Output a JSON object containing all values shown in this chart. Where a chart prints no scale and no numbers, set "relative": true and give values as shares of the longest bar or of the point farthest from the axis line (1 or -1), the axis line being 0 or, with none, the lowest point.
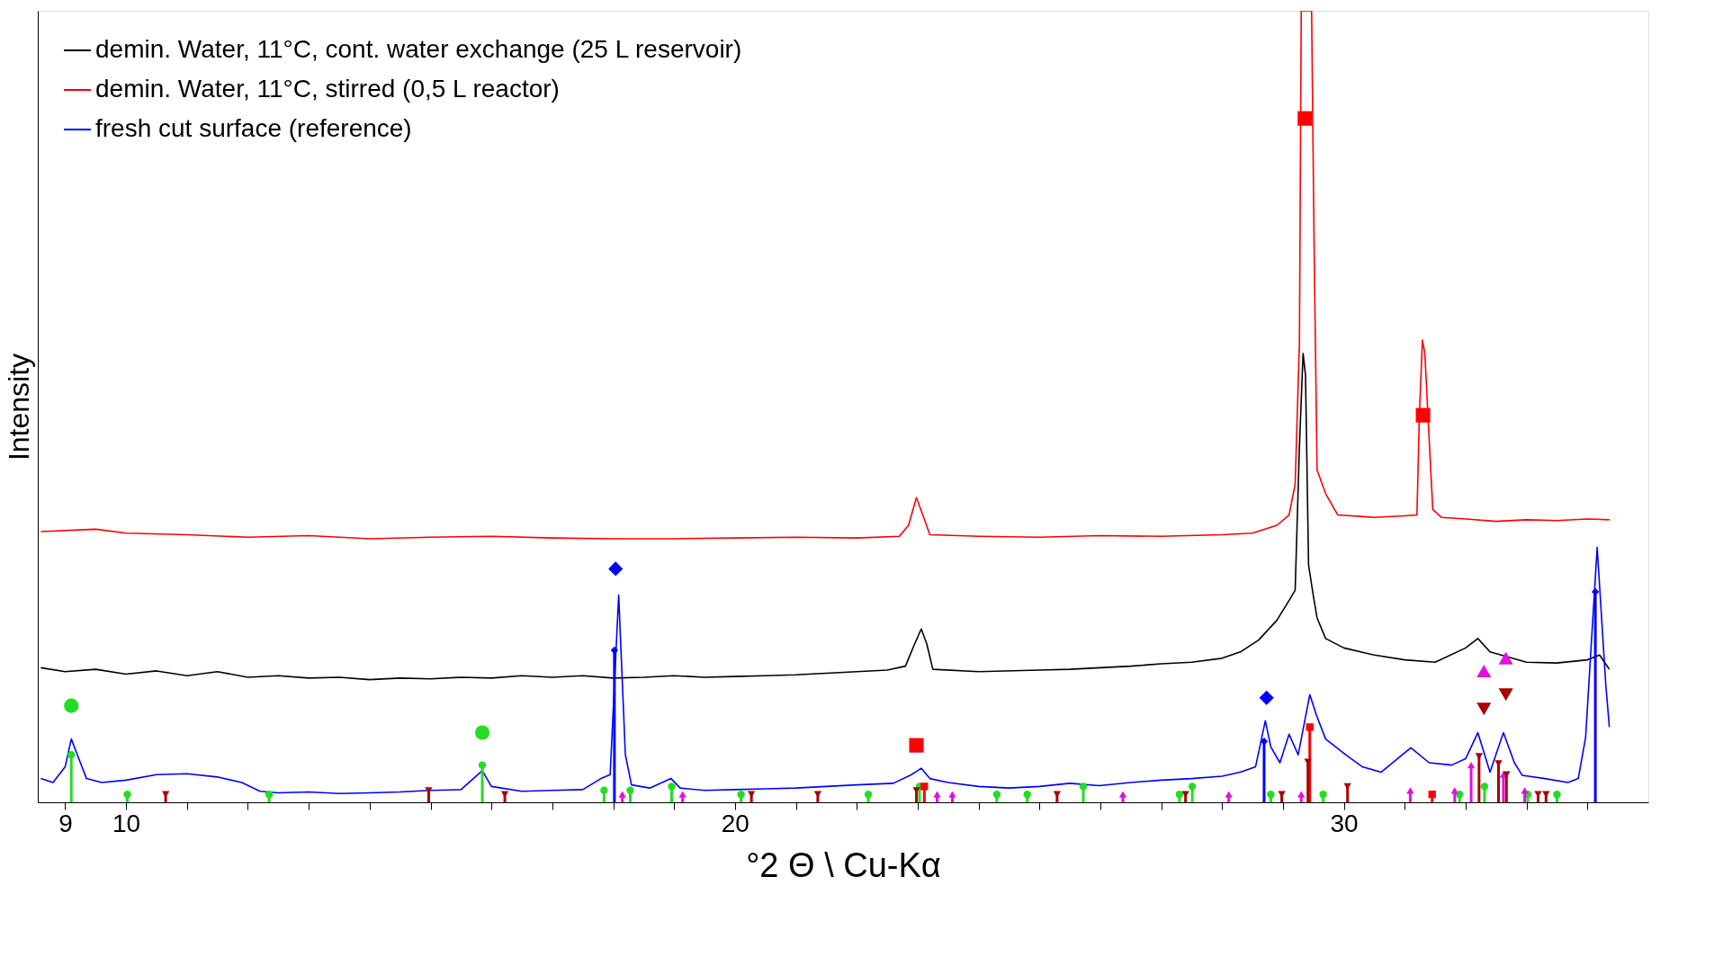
{
  "chart_data": {
    "type": "line",
    "xlabel": "°2 Θ \\ Cu-Kα",
    "ylabel": "Intensity",
    "relative": true,
    "grid": false,
    "legend": "top left",
    "xlim": [
      8.55,
      35
    ],
    "xticks": [
      9,
      10,
      {
        "value": 11,
        "label": null
      },
      {
        "value": 12,
        "label": null
      },
      {
        "value": 13,
        "label": null
      },
      {
        "value": 14,
        "label": null
      },
      {
        "value": 15,
        "label": null
      },
      {
        "value": 16,
        "label": null
      },
      {
        "value": 17,
        "label": null
      },
      {
        "value": 18,
        "label": null
      },
      {
        "value": 19,
        "label": null
      },
      20,
      {
        "value": 21,
        "label": null
      },
      {
        "value": 22,
        "label": null
      },
      {
        "value": 23,
        "label": null
      },
      {
        "value": 24,
        "label": null
      },
      {
        "value": 25,
        "label": null
      },
      {
        "value": 26,
        "label": null
      },
      {
        "value": 27,
        "label": null
      },
      {
        "value": 28,
        "label": null
      },
      {
        "value": 29,
        "label": null
      },
      30,
      {
        "value": 31,
        "label": null
      },
      {
        "value": 32,
        "label": null
      },
      {
        "value": 33,
        "label": null
      },
      {
        "value": 34,
        "label": null
      }
    ],
    "series": [
      {
        "name": "demin. Water, 11°C, cont. water exchange (25 L reservoir)",
        "color": "#000000",
        "x": [
          8.6,
          9,
          9.5,
          10,
          10.5,
          11,
          11.5,
          12,
          12.5,
          13,
          13.5,
          14,
          14.5,
          15,
          15.5,
          16,
          16.5,
          17,
          17.5,
          18,
          18.5,
          19,
          19.5,
          20,
          20.5,
          21,
          21.5,
          22,
          22.5,
          22.8,
          22.95,
          23.06,
          23.15,
          23.25,
          24,
          25,
          25.5,
          26,
          26.5,
          27,
          27.5,
          28,
          28.3,
          28.6,
          28.9,
          29.1,
          29.2,
          29.27,
          29.33,
          29.37,
          29.42,
          29.5,
          29.56,
          29.7,
          30,
          30.5,
          31,
          31.5,
          32,
          32.2,
          32.4,
          33,
          33.5,
          34,
          34.2,
          34.36
        ],
        "values": [
          0.17,
          0.165,
          0.168,
          0.162,
          0.166,
          0.16,
          0.165,
          0.158,
          0.16,
          0.157,
          0.158,
          0.155,
          0.157,
          0.156,
          0.158,
          0.157,
          0.16,
          0.158,
          0.16,
          0.157,
          0.158,
          0.16,
          0.158,
          0.159,
          0.16,
          0.161,
          0.163,
          0.165,
          0.167,
          0.172,
          0.2,
          0.219,
          0.2,
          0.168,
          0.165,
          0.167,
          0.168,
          0.17,
          0.172,
          0.175,
          0.177,
          0.182,
          0.19,
          0.205,
          0.23,
          0.255,
          0.268,
          0.45,
          0.567,
          0.54,
          0.3,
          0.26,
          0.233,
          0.207,
          0.195,
          0.186,
          0.18,
          0.177,
          0.195,
          0.207,
          0.19,
          0.177,
          0.176,
          0.18,
          0.186,
          0.168
        ]
      },
      {
        "name": "demin. Water, 11°C, stirred (0,5 L reactor)",
        "color": "#ff0000",
        "x": [
          8.6,
          9.5,
          10,
          11,
          12,
          13,
          14,
          15,
          16,
          17,
          18,
          19,
          20,
          21,
          22,
          22.7,
          22.85,
          22.98,
          23.1,
          23.2,
          24,
          25,
          26,
          27,
          28,
          28.5,
          28.9,
          29.1,
          29.2,
          29.27,
          29.3,
          29.47,
          29.51,
          29.56,
          29.7,
          29.9,
          30.5,
          31,
          31.2,
          31.24,
          31.29,
          31.33,
          31.38,
          31.46,
          31.6,
          32,
          32.5,
          33,
          33.5,
          34,
          34.36
        ],
        "values": [
          0.342,
          0.345,
          0.34,
          0.338,
          0.335,
          0.337,
          0.333,
          0.335,
          0.336,
          0.334,
          0.333,
          0.333,
          0.334,
          0.335,
          0.334,
          0.336,
          0.35,
          0.385,
          0.36,
          0.338,
          0.336,
          0.335,
          0.337,
          0.336,
          0.338,
          0.34,
          0.35,
          0.363,
          0.402,
          0.58,
          1,
          1,
          0.71,
          0.42,
          0.39,
          0.363,
          0.36,
          0.362,
          0.363,
          0.49,
          0.584,
          0.567,
          0.49,
          0.37,
          0.36,
          0.358,
          0.355,
          0.357,
          0.356,
          0.358,
          0.357
        ]
      },
      {
        "name": "fresh cut surface (reference)",
        "color": "#0000ff",
        "x": [
          8.6,
          8.8,
          9,
          9.1,
          9.2,
          9.35,
          9.6,
          10,
          10.5,
          11,
          11.5,
          11.9,
          12.2,
          12.5,
          13,
          13.5,
          14,
          14.5,
          15,
          15.5,
          15.85,
          16,
          16.5,
          17,
          17.5,
          17.8,
          17.95,
          18.09,
          18.2,
          18.3,
          18.6,
          18.95,
          19.1,
          19.5,
          20,
          20.5,
          21,
          21.5,
          22,
          22.6,
          22.9,
          23.06,
          23.2,
          23.5,
          24,
          24.5,
          25,
          25.5,
          25.98,
          26.5,
          27,
          27.5,
          28,
          28.3,
          28.55,
          28.71,
          28.8,
          28.95,
          29.1,
          29.25,
          29.44,
          29.55,
          29.7,
          30.03,
          30.3,
          30.61,
          31.1,
          31.4,
          31.77,
          32,
          32.2,
          32.4,
          32.62,
          32.8,
          32.93,
          33.3,
          33.68,
          33.85,
          33.97,
          34.16,
          34.3,
          34.36
        ],
        "values": [
          0.03,
          0.025,
          0.045,
          0.08,
          0.06,
          0.03,
          0.025,
          0.028,
          0.035,
          0.036,
          0.032,
          0.025,
          0.014,
          0.012,
          0.013,
          0.011,
          0.012,
          0.013,
          0.015,
          0.016,
          0.04,
          0.02,
          0.014,
          0.015,
          0.016,
          0.03,
          0.035,
          0.262,
          0.06,
          0.022,
          0.018,
          0.03,
          0.018,
          0.015,
          0.016,
          0.017,
          0.018,
          0.02,
          0.022,
          0.024,
          0.035,
          0.043,
          0.03,
          0.025,
          0.02,
          0.018,
          0.02,
          0.024,
          0.021,
          0.025,
          0.028,
          0.03,
          0.033,
          0.038,
          0.045,
          0.103,
          0.07,
          0.05,
          0.086,
          0.06,
          0.136,
          0.11,
          0.08,
          0.06,
          0.045,
          0.038,
          0.069,
          0.05,
          0.047,
          0.055,
          0.088,
          0.038,
          0.088,
          0.05,
          0.034,
          0.03,
          0.025,
          0.03,
          0.082,
          0.322,
          0.15,
          0.095
        ]
      },
      {
        "color": "#22dd22",
        "type": "lollipop",
        "marker": "circle",
        "x": [
          9.1,
          10.02,
          12.35,
          15.85,
          17.85,
          18.28,
          18.96,
          20.1,
          22.19,
          23.03,
          24.3,
          24.8,
          25.72,
          27.3,
          27.51,
          28.8,
          29.66,
          31.9,
          32.31,
          33.02,
          33.5
        ],
        "values": [
          0.06,
          0.01,
          0.01,
          0.047,
          0.015,
          0.015,
          0.02,
          0.01,
          0.01,
          0.02,
          0.01,
          0.01,
          0.02,
          0.01,
          0.02,
          0.01,
          0.01,
          0.01,
          0.02,
          0.01,
          0.01
        ]
      },
      {
        "color": "#0000ff",
        "type": "lollipop",
        "marker": "diamond",
        "x": [
          18.02,
          28.69,
          34.13
        ],
        "values": [
          0.192,
          0.077,
          0.266
        ]
      },
      {
        "color": "#ff0000",
        "type": "lollipop",
        "marker": "square",
        "x": [
          23.11,
          29.44,
          31.45
        ],
        "values": [
          0.02,
          0.095,
          0.01
        ]
      },
      {
        "color": "#e010e0",
        "type": "lollipop",
        "marker": "triangle",
        "x": [
          18.15,
          19.14,
          23.32,
          23.57,
          26.37,
          28.11,
          29.3,
          31.09,
          31.82,
          32.09,
          32.62,
          32.97
        ],
        "values": [
          0.01,
          0.01,
          0.01,
          0.01,
          0.01,
          0.01,
          0.01,
          0.015,
          0.015,
          0.047,
          0.035,
          0.015
        ]
      },
      {
        "color": "#aa0000",
        "type": "lollipop",
        "marker": "triangle-down",
        "x": [
          10.65,
          14.97,
          16.22,
          20.27,
          21.36,
          22.98,
          25.29,
          27.4,
          28.98,
          29.41,
          30.06,
          32.22,
          32.54,
          32.67,
          33.19,
          33.32
        ],
        "values": [
          0.01,
          0.015,
          0.01,
          0.01,
          0.01,
          0.015,
          0.01,
          0.01,
          0.01,
          0.051,
          0.02,
          0.058,
          0.049,
          0.035,
          0.01,
          0.01
        ]
      },
      {
        "color": "#22dd22",
        "type": "scatter",
        "marker": "circle",
        "x": [
          9.1,
          15.85
        ],
        "values": [
          0.122,
          0.088
        ]
      },
      {
        "color": "#0000ff",
        "type": "scatter",
        "marker": "diamond",
        "x": [
          18.04,
          28.73
        ],
        "values": [
          0.295,
          0.132
        ]
      },
      {
        "color": "#ff0000",
        "type": "scatter",
        "marker": "square",
        "x": [
          22.98,
          29.36,
          31.3
        ],
        "values": [
          0.072,
          0.864,
          0.489
        ]
      },
      {
        "color": "#e010e0",
        "type": "scatter",
        "marker": "triangle",
        "x": [
          32.3,
          32.66
        ],
        "values": [
          0.166,
          0.182
        ]
      },
      {
        "color": "#aa0000",
        "type": "scatter",
        "marker": "triangle-down",
        "x": [
          32.3,
          32.66
        ],
        "values": [
          0.118,
          0.136
        ]
      }
    ]
  }
}
